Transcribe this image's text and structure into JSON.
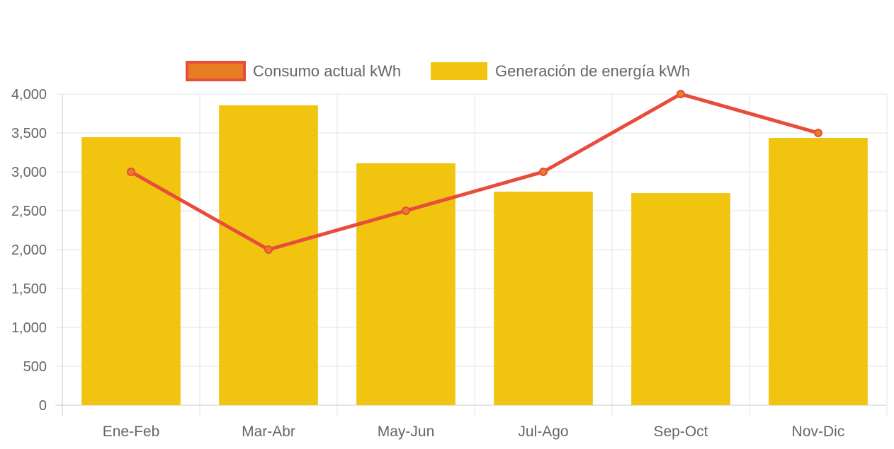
{
  "chart_data": {
    "type": "bar",
    "title": "",
    "xlabel": "",
    "ylabel": "",
    "categories": [
      "Ene-Feb",
      "Mar-Abr",
      "May-Jun",
      "Jul-Ago",
      "Sep-Oct",
      "Nov-Dic"
    ],
    "ylim": [
      0,
      4000
    ],
    "yticks": [
      0,
      500,
      1000,
      1500,
      2000,
      2500,
      3000,
      3500,
      4000
    ],
    "ytick_labels": [
      "0",
      "500",
      "1,000",
      "1,500",
      "2,000",
      "2,500",
      "3,000",
      "3,500",
      "4,000"
    ],
    "grid": true,
    "legend_position": "top-center",
    "series": [
      {
        "name": "Consumo actual kWh",
        "type": "line",
        "values": [
          3000,
          2000,
          2500,
          3000,
          4000,
          3500
        ],
        "color": "#e74c3c",
        "point_color": "#e67e22"
      },
      {
        "name": "Generación de energía kWh",
        "type": "bar",
        "values": [
          3445,
          3855,
          3110,
          2745,
          2727,
          3436
        ],
        "color": "#f1c40f"
      }
    ]
  }
}
